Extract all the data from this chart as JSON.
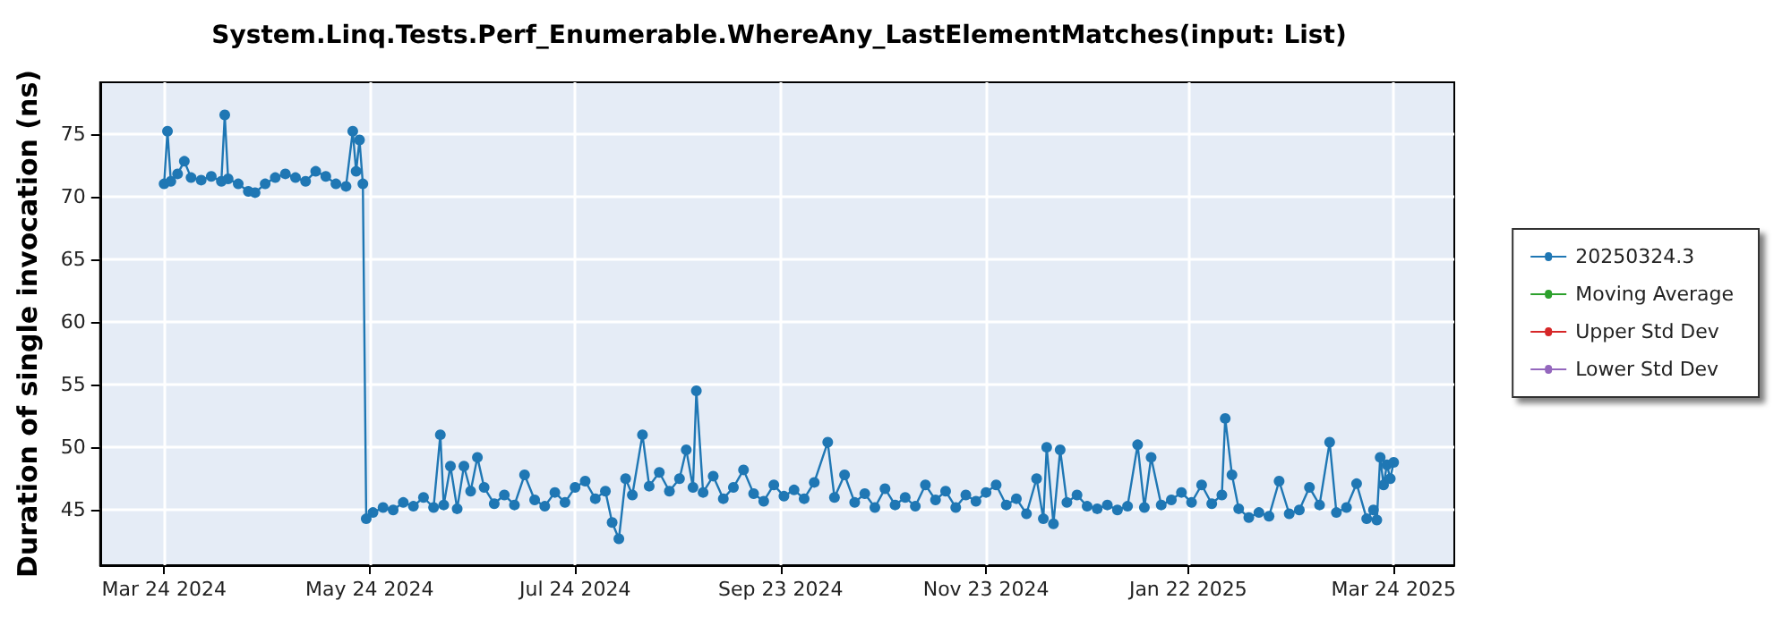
{
  "chart_data": {
    "type": "line",
    "title": "System.Linq.Tests.Perf_Enumerable.WhereAny_LastElementMatches(input: List)",
    "ylabel": "Duration of single invocation (ns)",
    "xlim": [
      "2024-03-05",
      "2025-04-11"
    ],
    "xticks": [
      {
        "value": "2024-03-24",
        "label": "Mar 24 2024"
      },
      {
        "value": "2024-05-24",
        "label": "May 24 2024"
      },
      {
        "value": "2024-07-24",
        "label": "Jul 24 2024"
      },
      {
        "value": "2024-09-23",
        "label": "Sep 23 2024"
      },
      {
        "value": "2024-11-23",
        "label": "Nov 23 2024"
      },
      {
        "value": "2025-01-22",
        "label": "Jan 22 2025"
      },
      {
        "value": "2025-03-24",
        "label": "Mar 24 2025"
      }
    ],
    "ylim": [
      40.6,
      79.1
    ],
    "yticks": [
      45,
      50,
      55,
      60,
      65,
      70,
      75
    ],
    "grid": true,
    "legend": "right",
    "marker": "circle",
    "line_style": "solid",
    "series": [
      {
        "name": "20250324.3",
        "color": "#1f77b4",
        "x": [
          "2024-03-24",
          "2024-03-25",
          "2024-03-26",
          "2024-03-28",
          "2024-03-30",
          "2024-04-01",
          "2024-04-04",
          "2024-04-07",
          "2024-04-10",
          "2024-04-11",
          "2024-04-12",
          "2024-04-15",
          "2024-04-18",
          "2024-04-20",
          "2024-04-23",
          "2024-04-26",
          "2024-04-29",
          "2024-05-02",
          "2024-05-05",
          "2024-05-08",
          "2024-05-11",
          "2024-05-14",
          "2024-05-17",
          "2024-05-19",
          "2024-05-20",
          "2024-05-21",
          "2024-05-22",
          "2024-05-23",
          "2024-05-25",
          "2024-05-28",
          "2024-05-31",
          "2024-06-03",
          "2024-06-06",
          "2024-06-09",
          "2024-06-12",
          "2024-06-14",
          "2024-06-15",
          "2024-06-17",
          "2024-06-19",
          "2024-06-21",
          "2024-06-23",
          "2024-06-25",
          "2024-06-27",
          "2024-06-30",
          "2024-07-03",
          "2024-07-06",
          "2024-07-09",
          "2024-07-12",
          "2024-07-15",
          "2024-07-18",
          "2024-07-21",
          "2024-07-24",
          "2024-07-27",
          "2024-07-30",
          "2024-08-02",
          "2024-08-04",
          "2024-08-06",
          "2024-08-08",
          "2024-08-10",
          "2024-08-13",
          "2024-08-15",
          "2024-08-18",
          "2024-08-21",
          "2024-08-24",
          "2024-08-26",
          "2024-08-28",
          "2024-08-29",
          "2024-08-31",
          "2024-09-03",
          "2024-09-06",
          "2024-09-09",
          "2024-09-12",
          "2024-09-15",
          "2024-09-18",
          "2024-09-21",
          "2024-09-24",
          "2024-09-27",
          "2024-09-30",
          "2024-10-03",
          "2024-10-07",
          "2024-10-09",
          "2024-10-12",
          "2024-10-15",
          "2024-10-18",
          "2024-10-21",
          "2024-10-24",
          "2024-10-27",
          "2024-10-30",
          "2024-11-02",
          "2024-11-05",
          "2024-11-08",
          "2024-11-11",
          "2024-11-14",
          "2024-11-17",
          "2024-11-20",
          "2024-11-23",
          "2024-11-26",
          "2024-11-29",
          "2024-12-02",
          "2024-12-05",
          "2024-12-08",
          "2024-12-10",
          "2024-12-11",
          "2024-12-13",
          "2024-12-15",
          "2024-12-17",
          "2024-12-20",
          "2024-12-23",
          "2024-12-26",
          "2024-12-29",
          "2025-01-01",
          "2025-01-04",
          "2025-01-07",
          "2025-01-09",
          "2025-01-11",
          "2025-01-14",
          "2025-01-17",
          "2025-01-20",
          "2025-01-23",
          "2025-01-26",
          "2025-01-29",
          "2025-02-01",
          "2025-02-02",
          "2025-02-04",
          "2025-02-06",
          "2025-02-09",
          "2025-02-12",
          "2025-02-15",
          "2025-02-18",
          "2025-02-21",
          "2025-02-24",
          "2025-02-27",
          "2025-03-02",
          "2025-03-05",
          "2025-03-07",
          "2025-03-10",
          "2025-03-13",
          "2025-03-16",
          "2025-03-18",
          "2025-03-19",
          "2025-03-20",
          "2025-03-21",
          "2025-03-22",
          "2025-03-23",
          "2025-03-24"
        ],
        "values": [
          71.0,
          75.2,
          71.2,
          71.8,
          72.8,
          71.5,
          71.3,
          71.6,
          71.2,
          76.5,
          71.4,
          71.0,
          70.4,
          70.3,
          71.0,
          71.5,
          71.8,
          71.5,
          71.2,
          72.0,
          71.6,
          71.0,
          70.8,
          75.2,
          72.0,
          74.5,
          71.0,
          44.3,
          44.8,
          45.2,
          45.0,
          45.6,
          45.3,
          46.0,
          45.2,
          51.0,
          45.4,
          48.5,
          45.1,
          48.5,
          46.5,
          49.2,
          46.8,
          45.5,
          46.2,
          45.4,
          47.8,
          45.8,
          45.3,
          46.4,
          45.6,
          46.8,
          47.3,
          45.9,
          46.5,
          44.0,
          42.7,
          47.5,
          46.2,
          51.0,
          46.9,
          48.0,
          46.5,
          47.5,
          49.8,
          46.8,
          54.5,
          46.4,
          47.7,
          45.9,
          46.8,
          48.2,
          46.3,
          45.7,
          47.0,
          46.1,
          46.6,
          45.9,
          47.2,
          50.4,
          46.0,
          47.8,
          45.6,
          46.3,
          45.2,
          46.7,
          45.4,
          46.0,
          45.3,
          47.0,
          45.8,
          46.5,
          45.2,
          46.2,
          45.7,
          46.4,
          47.0,
          45.4,
          45.9,
          44.7,
          47.5,
          44.3,
          50.0,
          43.9,
          49.8,
          45.6,
          46.2,
          45.3,
          45.1,
          45.4,
          45.0,
          45.3,
          50.2,
          45.2,
          49.2,
          45.4,
          45.8,
          46.4,
          45.6,
          47.0,
          45.5,
          46.2,
          52.3,
          47.8,
          45.1,
          44.4,
          44.8,
          44.5,
          47.3,
          44.7,
          45.0,
          46.8,
          45.4,
          50.4,
          44.8,
          45.2,
          47.1,
          44.3,
          45.0,
          44.2,
          49.2,
          47.0,
          48.6,
          47.5,
          48.8
        ]
      },
      {
        "name": "Moving Average",
        "color": "#2ca02c"
      },
      {
        "name": "Upper Std Dev",
        "color": "#d62728"
      },
      {
        "name": "Lower Std Dev",
        "color": "#9467bd"
      }
    ]
  }
}
